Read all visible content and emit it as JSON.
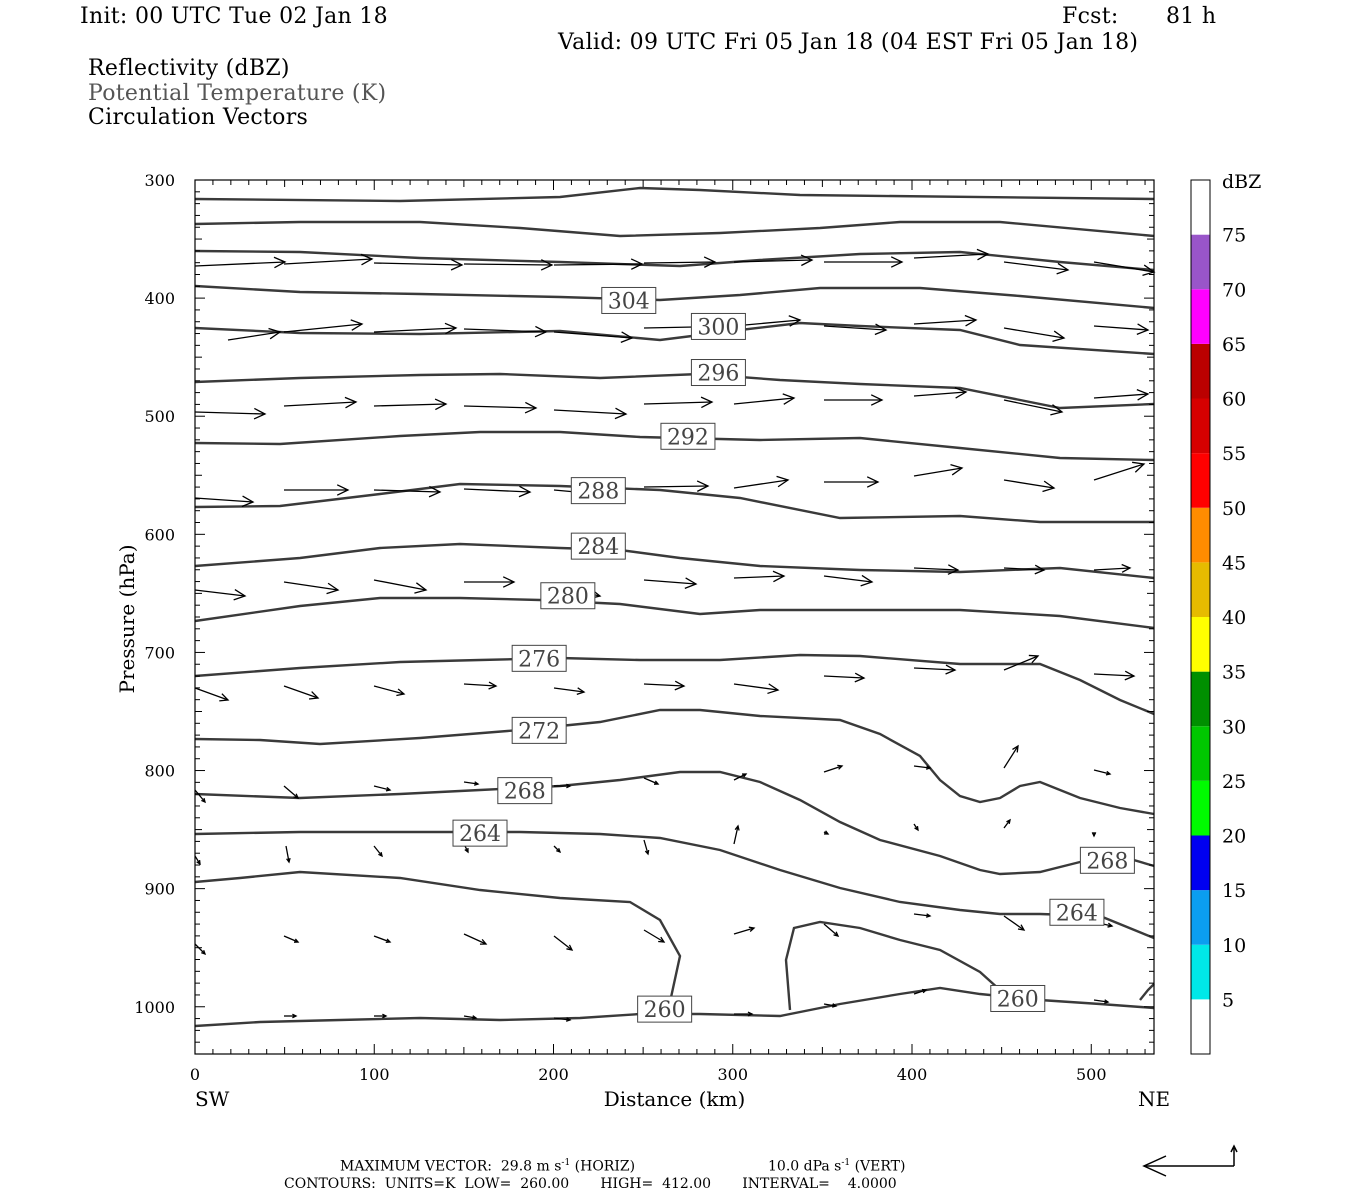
{
  "header": {
    "init": "Init: 00 UTC Tue 02 Jan 18",
    "fcst_label": "Fcst:",
    "fcst_value": "81 h",
    "valid": "Valid: 09 UTC Fri 05 Jan 18 (04 EST Fri 05 Jan 18)",
    "field1": "Reflectivity (dBZ)",
    "field2": "Potential Temperature (K)",
    "field3": "Circulation Vectors"
  },
  "footer": {
    "max_vector": "MAXIMUM VECTOR:  29.8 m s",
    "max_vector_sup": "-1",
    "horiz": "(HORIZ)",
    "vert_val": "10.0 dPa s",
    "vert_sup": "-1",
    "vert": "(VERT)",
    "contours": "CONTOURS:  UNITS=K  LOW=  260.00       HIGH=  412.00       INTERVAL=    4.0000"
  },
  "chart_data": {
    "type": "cross-section",
    "xlabel": "Distance (km)",
    "ylabel": "Pressure (hPa)",
    "x_left_label": "SW",
    "x_right_label": "NE",
    "xlim": [
      0,
      535
    ],
    "ylim": [
      1040,
      300
    ],
    "x_ticks": [
      0,
      100,
      200,
      300,
      400,
      500
    ],
    "y_ticks": [
      300,
      400,
      500,
      600,
      700,
      800,
      900,
      1000
    ],
    "colorbar": {
      "unit": "dBZ",
      "labels": [
        "5",
        "10",
        "15",
        "20",
        "25",
        "30",
        "35",
        "40",
        "45",
        "50",
        "55",
        "60",
        "65",
        "70",
        "75"
      ],
      "colors": [
        "#ffffff",
        "#00e8e8",
        "#0b9ef0",
        "#0000f0",
        "#00fb00",
        "#00c700",
        "#008f00",
        "#ffff00",
        "#e6bb00",
        "#ff8c00",
        "#ff0000",
        "#d60000",
        "#bb0000",
        "#ff00ff",
        "#9955c9",
        "#ffffff"
      ]
    },
    "contour_labels": [
      {
        "text": "304",
        "x": 242,
        "y": 402
      },
      {
        "text": "300",
        "x": 292,
        "y": 424
      },
      {
        "text": "296",
        "x": 292,
        "y": 463
      },
      {
        "text": "292",
        "x": 275,
        "y": 517
      },
      {
        "text": "288",
        "x": 225,
        "y": 563
      },
      {
        "text": "284",
        "x": 225,
        "y": 610
      },
      {
        "text": "280",
        "x": 208,
        "y": 652
      },
      {
        "text": "276",
        "x": 192,
        "y": 705
      },
      {
        "text": "272",
        "x": 192,
        "y": 766
      },
      {
        "text": "268",
        "x": 184,
        "y": 817
      },
      {
        "text": "264",
        "x": 159,
        "y": 853
      },
      {
        "text": "268",
        "x": 509,
        "y": 876
      },
      {
        "text": "264",
        "x": 492,
        "y": 920
      },
      {
        "text": "260",
        "x": 262,
        "y": 1002
      },
      {
        "text": "260",
        "x": 459,
        "y": 993
      }
    ]
  }
}
